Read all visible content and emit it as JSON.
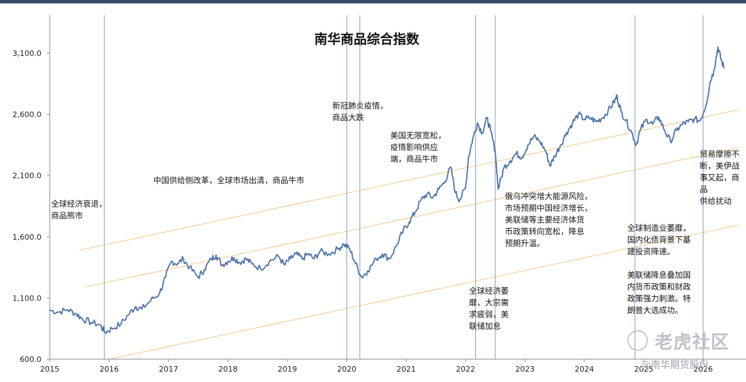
{
  "chart_data": {
    "type": "line",
    "title": "南华商品综合指数",
    "y_ticks": [
      "3,100.0",
      "2,600.0",
      "2,100.0",
      "1,600.0",
      "1,100.0",
      "600.0"
    ],
    "y_tick_values": [
      3100,
      2600,
      2100,
      1600,
      1100,
      600
    ],
    "x_ticks": [
      "2015",
      "2016",
      "2017",
      "2018",
      "2019",
      "2020",
      "2021",
      "2022",
      "2023",
      "2024",
      "2025",
      "2026"
    ],
    "x_tick_values": [
      2015,
      2016,
      2017,
      2018,
      2019,
      2020,
      2021,
      2022,
      2023,
      2024,
      2025,
      2026
    ],
    "xlim": [
      2015,
      2026.6
    ],
    "ylim": [
      600,
      3400
    ],
    "series": [
      {
        "color": "#4a72a8",
        "points": [
          [
            2015.0,
            1000
          ],
          [
            2015.15,
            985
          ],
          [
            2015.3,
            1005
          ],
          [
            2015.45,
            970
          ],
          [
            2015.55,
            930
          ],
          [
            2015.7,
            900
          ],
          [
            2015.85,
            880
          ],
          [
            2015.93,
            820
          ],
          [
            2016.05,
            850
          ],
          [
            2016.2,
            890
          ],
          [
            2016.35,
            980
          ],
          [
            2016.45,
            1030
          ],
          [
            2016.55,
            1010
          ],
          [
            2016.7,
            1080
          ],
          [
            2016.85,
            1140
          ],
          [
            2016.95,
            1270
          ],
          [
            2017.05,
            1400
          ],
          [
            2017.15,
            1380
          ],
          [
            2017.25,
            1420
          ],
          [
            2017.35,
            1350
          ],
          [
            2017.5,
            1270
          ],
          [
            2017.6,
            1330
          ],
          [
            2017.72,
            1420
          ],
          [
            2017.8,
            1450
          ],
          [
            2017.9,
            1370
          ],
          [
            2018.0,
            1400
          ],
          [
            2018.1,
            1430
          ],
          [
            2018.2,
            1390
          ],
          [
            2018.3,
            1420
          ],
          [
            2018.4,
            1380
          ],
          [
            2018.55,
            1340
          ],
          [
            2018.7,
            1400
          ],
          [
            2018.85,
            1440
          ],
          [
            2018.95,
            1370
          ],
          [
            2019.05,
            1420
          ],
          [
            2019.15,
            1460
          ],
          [
            2019.25,
            1420
          ],
          [
            2019.35,
            1460
          ],
          [
            2019.45,
            1420
          ],
          [
            2019.55,
            1480
          ],
          [
            2019.7,
            1460
          ],
          [
            2019.85,
            1500
          ],
          [
            2019.95,
            1540
          ],
          [
            2020.05,
            1500
          ],
          [
            2020.15,
            1380
          ],
          [
            2020.25,
            1270
          ],
          [
            2020.35,
            1320
          ],
          [
            2020.5,
            1420
          ],
          [
            2020.6,
            1460
          ],
          [
            2020.72,
            1420
          ],
          [
            2020.85,
            1540
          ],
          [
            2020.95,
            1650
          ],
          [
            2021.05,
            1720
          ],
          [
            2021.15,
            1800
          ],
          [
            2021.25,
            1900
          ],
          [
            2021.35,
            1950
          ],
          [
            2021.45,
            1920
          ],
          [
            2021.55,
            1990
          ],
          [
            2021.65,
            2050
          ],
          [
            2021.75,
            2170
          ],
          [
            2021.83,
            1960
          ],
          [
            2021.9,
            1900
          ],
          [
            2022.0,
            2000
          ],
          [
            2022.05,
            2250
          ],
          [
            2022.12,
            2400
          ],
          [
            2022.2,
            2530
          ],
          [
            2022.28,
            2450
          ],
          [
            2022.36,
            2570
          ],
          [
            2022.42,
            2470
          ],
          [
            2022.5,
            2300
          ],
          [
            2022.55,
            1990
          ],
          [
            2022.65,
            2170
          ],
          [
            2022.75,
            2220
          ],
          [
            2022.85,
            2280
          ],
          [
            2022.95,
            2250
          ],
          [
            2023.05,
            2350
          ],
          [
            2023.15,
            2420
          ],
          [
            2023.25,
            2380
          ],
          [
            2023.35,
            2300
          ],
          [
            2023.42,
            2180
          ],
          [
            2023.5,
            2260
          ],
          [
            2023.6,
            2350
          ],
          [
            2023.7,
            2450
          ],
          [
            2023.8,
            2530
          ],
          [
            2023.9,
            2600
          ],
          [
            2024.0,
            2560
          ],
          [
            2024.1,
            2570
          ],
          [
            2024.2,
            2540
          ],
          [
            2024.3,
            2570
          ],
          [
            2024.4,
            2630
          ],
          [
            2024.5,
            2700
          ],
          [
            2024.55,
            2750
          ],
          [
            2024.62,
            2620
          ],
          [
            2024.7,
            2550
          ],
          [
            2024.8,
            2450
          ],
          [
            2024.87,
            2350
          ],
          [
            2024.95,
            2480
          ],
          [
            2025.05,
            2560
          ],
          [
            2025.15,
            2520
          ],
          [
            2025.25,
            2580
          ],
          [
            2025.35,
            2470
          ],
          [
            2025.45,
            2380
          ],
          [
            2025.55,
            2470
          ],
          [
            2025.65,
            2520
          ],
          [
            2025.75,
            2540
          ],
          [
            2025.85,
            2560
          ],
          [
            2025.95,
            2550
          ],
          [
            2026.05,
            2680
          ],
          [
            2026.12,
            2870
          ],
          [
            2026.18,
            2960
          ],
          [
            2026.25,
            3150
          ],
          [
            2026.3,
            3050
          ],
          [
            2026.35,
            2980
          ]
        ]
      }
    ],
    "trend_channel": {
      "color": "#f4c987",
      "slope_per_year": 103.5,
      "lines": [
        {
          "x": [
            2015.5,
            2026.6
          ],
          "y_start": 1490
        },
        {
          "x": [
            2015.6,
            2026.6
          ],
          "y_start": 1190
        },
        {
          "x": [
            2016.0,
            2026.6
          ],
          "y_start": 600
        }
      ]
    },
    "event_lines": {
      "color": "#7e9cc2",
      "x": [
        2015.92,
        2020.0,
        2020.22,
        2022.17,
        2022.5,
        2024.85,
        2026.0
      ]
    },
    "annotations": [
      "全球经济衰退，\n商品熊市",
      "中国供给侧改革，全球市场出清，商品牛市",
      "新冠肺炎疫情，\n商品大跌",
      "美国无限宽松，\n疫情影响供应\n端，商品牛市",
      "全球经济萎\n靡，大宗需\n求疲弱，美\n联储加息",
      "俄乌冲突增大能源风险，\n市场预期中国经济增长，\n美联储等主要经济体货\n币政策转向宽松，降息\n预期升温。",
      "全球制造业萎靡，\n国内化债背景下基\n建投资降速。\n\n美联储降息叠加国\n内货币政策和财政\n政策强力刺激。特\n朗普大选成功。",
      "贸易摩擦不\n断，美伊战\n事又起，商品\n供给扰动"
    ]
  },
  "watermark": {
    "logo_text": "老虎社区",
    "sub_text": "@南华期货股份"
  }
}
